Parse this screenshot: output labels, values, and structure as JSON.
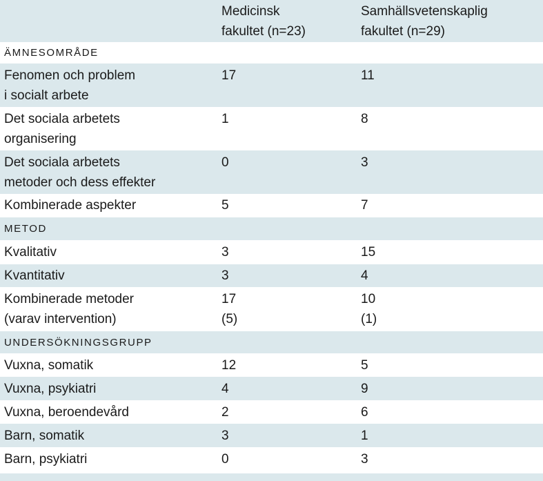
{
  "header": {
    "col2": "Medicinsk\nfakultet (n=23)",
    "col3": "Samhällsvetenskaplig\nfakultet (n=29)"
  },
  "sections": [
    {
      "title": "ÄMNESOMRÅDE",
      "rows": [
        {
          "label": "Fenomen och problem\ni socialt arbete",
          "med": "17",
          "sam": "11"
        },
        {
          "label": "Det sociala arbetets\norganisering",
          "med": "1",
          "sam": "8"
        },
        {
          "label": "Det sociala arbetets\nmetoder och dess effekter",
          "med": "0",
          "sam": "3"
        },
        {
          "label": "Kombinerade aspekter",
          "med": "5",
          "sam": "7"
        }
      ]
    },
    {
      "title": "METOD",
      "rows": [
        {
          "label": "Kvalitativ",
          "med": "3",
          "sam": "15"
        },
        {
          "label": "Kvantitativ",
          "med": "3",
          "sam": "4"
        },
        {
          "label": "Kombinerade metoder\n(varav intervention)",
          "med": "17\n(5)",
          "sam": "10\n(1)"
        }
      ]
    },
    {
      "title": "UNDERSÖKNINGSGRUPP",
      "rows": [
        {
          "label": "Vuxna, somatik",
          "med": "12",
          "sam": "5"
        },
        {
          "label": "Vuxna, psykiatri",
          "med": "4",
          "sam": "9"
        },
        {
          "label": "Vuxna, beroendevård",
          "med": "2",
          "sam": "6"
        },
        {
          "label": "Barn, somatik",
          "med": "3",
          "sam": "1"
        },
        {
          "label": "Barn, psykiatri",
          "med": "0",
          "sam": "3"
        }
      ]
    }
  ]
}
